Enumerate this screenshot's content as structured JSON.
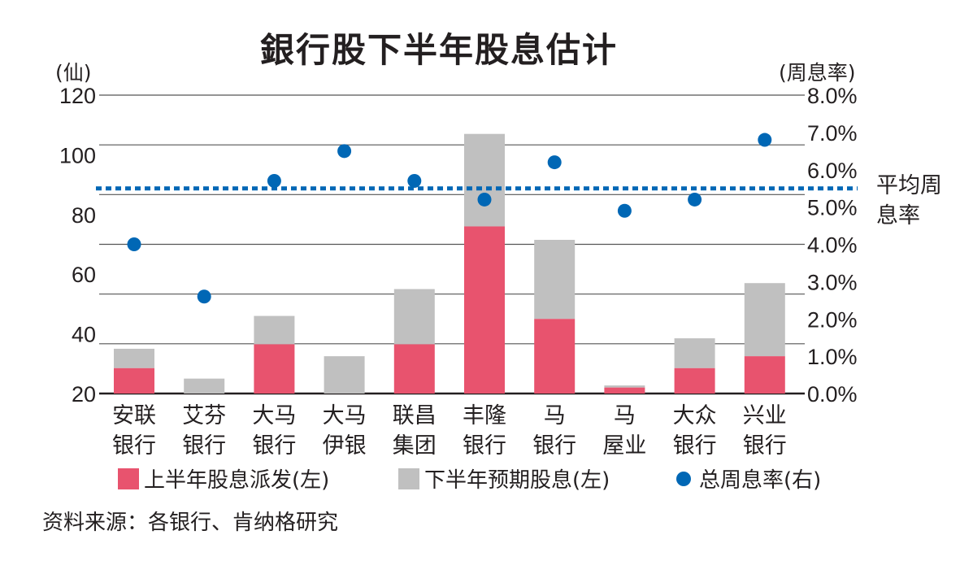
{
  "chart_data": {
    "type": "bar",
    "title": "銀行股下半年股息估计",
    "ylabel_left": "(仙)",
    "ylabel_right": "(周息率)",
    "categories": [
      "安联\n银行",
      "艾芬\n银行",
      "大马\n银行",
      "大马\n伊银",
      "联昌\n集团",
      "丰隆\n银行",
      "马\n银行",
      "马\n屋业",
      "大众\n银行",
      "兴业\n银行"
    ],
    "left_ticks": [
      "120",
      "100",
      "80",
      "60",
      "40",
      "20"
    ],
    "left_ylim": [
      20,
      120
    ],
    "right_ticks": [
      "8.0%",
      "7.0%",
      "6.0%",
      "5.0%",
      "4.0%",
      "3.0%",
      "2.0%",
      "1.0%",
      "0.0%"
    ],
    "right_ylim": [
      0,
      8
    ],
    "series": [
      {
        "name": "上半年股息派发(左)",
        "type": "bar",
        "axis": "left",
        "color": "#e8536e",
        "values": [
          28.5,
          20,
          36.5,
          20,
          36.5,
          76,
          45,
          22,
          28.5,
          32.5
        ]
      },
      {
        "name": "下半年预期股息(左)",
        "type": "bar",
        "axis": "left",
        "color": "#c0c0c0",
        "totals": [
          35,
          25,
          46,
          32.5,
          55,
          107,
          71.5,
          22.7,
          38.5,
          57
        ]
      },
      {
        "name": "总周息率(右)",
        "type": "scatter",
        "axis": "right",
        "color": "#0067b5",
        "values": [
          4.0,
          2.6,
          5.7,
          6.5,
          5.7,
          5.2,
          6.2,
          4.9,
          5.2,
          6.8
        ]
      }
    ],
    "average_line": {
      "label": "平均周息率",
      "value": 5.5,
      "color": "#0067b5"
    },
    "grid": true,
    "legend": "bottom",
    "source": "资料来源：各银行、肯纳格研究"
  }
}
